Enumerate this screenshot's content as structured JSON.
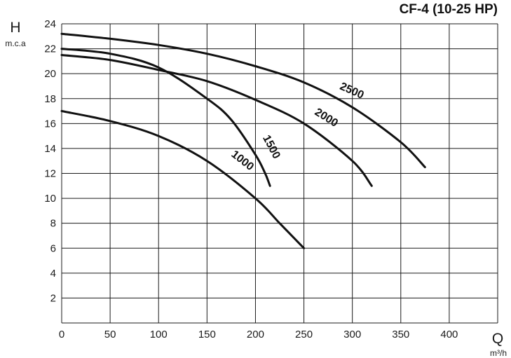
{
  "chart_data": {
    "type": "line",
    "title": "CF-4 (10-25 HP)",
    "ylabel": "H",
    "ylabel_unit": "m.c.a",
    "xlabel": "Q",
    "xlabel_unit": "m³/h",
    "xlim": [
      0,
      450
    ],
    "ylim": [
      0,
      24
    ],
    "grid": true,
    "x_ticks": [
      "0",
      "50",
      "100",
      "150",
      "200",
      "250",
      "300",
      "350",
      "400"
    ],
    "y_ticks": [
      "2",
      "4",
      "6",
      "8",
      "10",
      "12",
      "14",
      "16",
      "18",
      "20",
      "22",
      "24"
    ],
    "series": [
      {
        "name": "1000",
        "x": [
          0,
          50,
          100,
          150,
          200,
          225,
          250
        ],
        "y": [
          17,
          16.2,
          15,
          13,
          10,
          8,
          6
        ]
      },
      {
        "name": "1500",
        "x": [
          0,
          50,
          100,
          150,
          175,
          200,
          210,
          215
        ],
        "y": [
          22,
          21.6,
          20.5,
          18,
          16.3,
          13.5,
          12,
          11
        ]
      },
      {
        "name": "2000",
        "x": [
          0,
          50,
          100,
          150,
          200,
          250,
          300,
          320
        ],
        "y": [
          21.5,
          21.1,
          20.3,
          19.4,
          17.9,
          16,
          13,
          11
        ]
      },
      {
        "name": "2500",
        "x": [
          0,
          50,
          100,
          150,
          200,
          250,
          300,
          350,
          375
        ],
        "y": [
          23.2,
          22.8,
          22.3,
          21.6,
          20.6,
          19.3,
          17.3,
          14.5,
          12.5
        ]
      }
    ]
  }
}
